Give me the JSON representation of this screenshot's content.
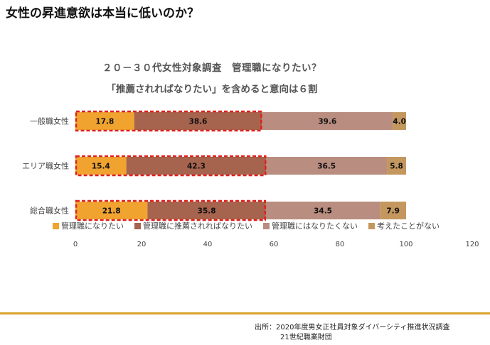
{
  "page": {
    "title": "女性の昇進意欲は本当に低いのか？",
    "source_line1": "出所：2020年度男女正社員対象ダイバーシティ推進状況調査",
    "source_line2": "21世紀職業財団"
  },
  "chart_data": {
    "type": "bar",
    "orientation": "horizontal",
    "stacked": true,
    "title": "２０－３０代女性対象調査　管理職になりたい？",
    "subtitle": "「推薦されればなりたい」を含めると意向は６割",
    "categories": [
      "一般職女性",
      "エリア職女性",
      "総合職女性"
    ],
    "series": [
      {
        "name": "管理職になりたい",
        "values": [
          17.8,
          15.4,
          21.8
        ],
        "color": "#f0a32f"
      },
      {
        "name": "管理職に推薦されればなりたい",
        "values": [
          38.6,
          42.3,
          35.8
        ],
        "color": "#a6634d"
      },
      {
        "name": "管理職にはなりたくない",
        "values": [
          39.6,
          36.5,
          34.5
        ],
        "color": "#b98d80"
      },
      {
        "name": "考えたことがない",
        "values": [
          4.0,
          5.8,
          7.9
        ],
        "color": "#c4975f"
      }
    ],
    "value_labels": [
      [
        "17.8",
        "38.6",
        "39.6",
        "4.0"
      ],
      [
        "15.4",
        "42.3",
        "36.5",
        "5.8"
      ],
      [
        "21.8",
        "35.8",
        "34.5",
        "7.9"
      ]
    ],
    "x_ticks": [
      "0",
      "20",
      "40",
      "60",
      "80",
      "100",
      "120"
    ],
    "xlim": [
      0,
      120
    ],
    "legend_position": "bottom",
    "grid": false,
    "highlight": "red dashed outline around first two segments of each bar",
    "highlight_color": "#e0201b"
  }
}
